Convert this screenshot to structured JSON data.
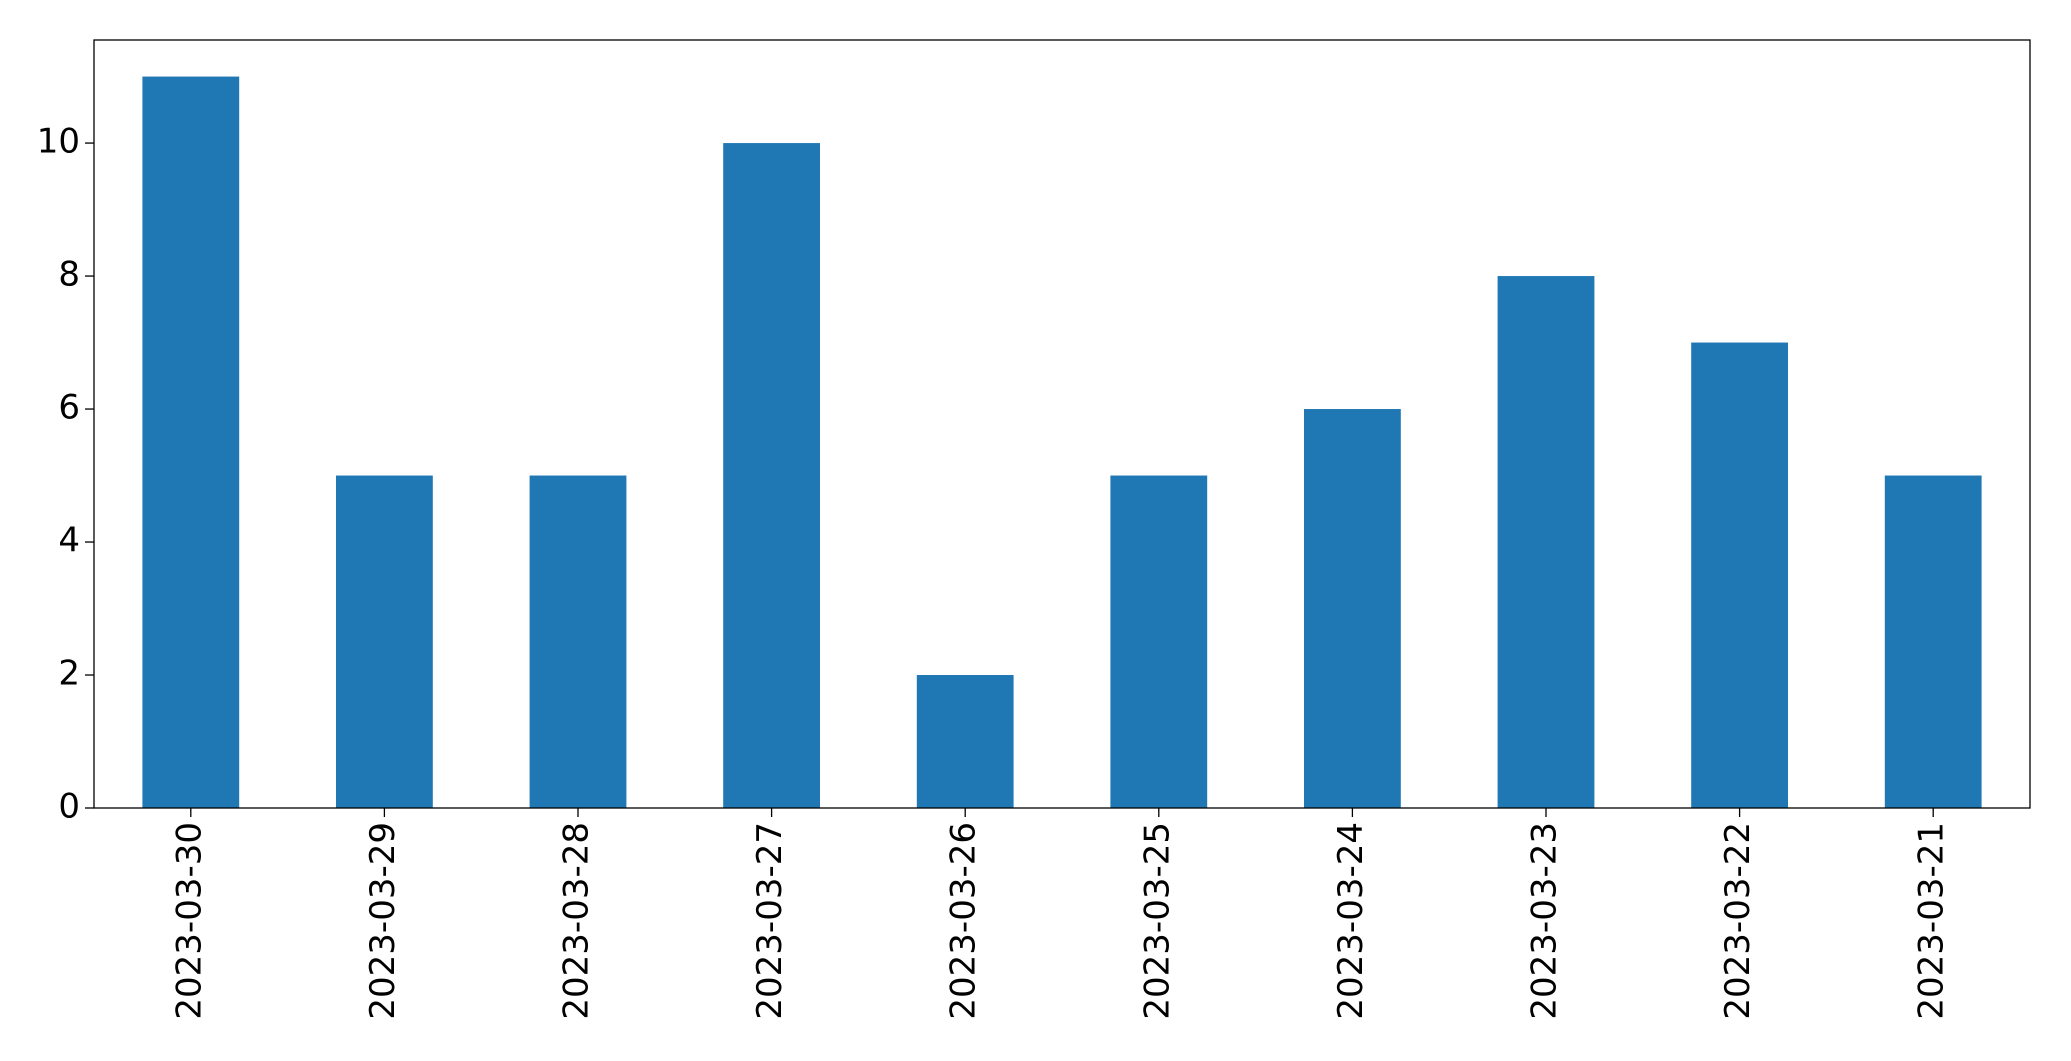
{
  "chart_data": {
    "type": "bar",
    "categories": [
      "2023-03-30",
      "2023-03-29",
      "2023-03-28",
      "2023-03-27",
      "2023-03-26",
      "2023-03-25",
      "2023-03-24",
      "2023-03-23",
      "2023-03-22",
      "2023-03-21"
    ],
    "values": [
      11,
      5,
      5,
      10,
      2,
      5,
      6,
      8,
      7,
      5
    ],
    "color": "#1f77b4",
    "ylim": [
      0,
      11.55
    ],
    "yticks": [
      0,
      2,
      4,
      6,
      8,
      10
    ],
    "grid": false
  }
}
